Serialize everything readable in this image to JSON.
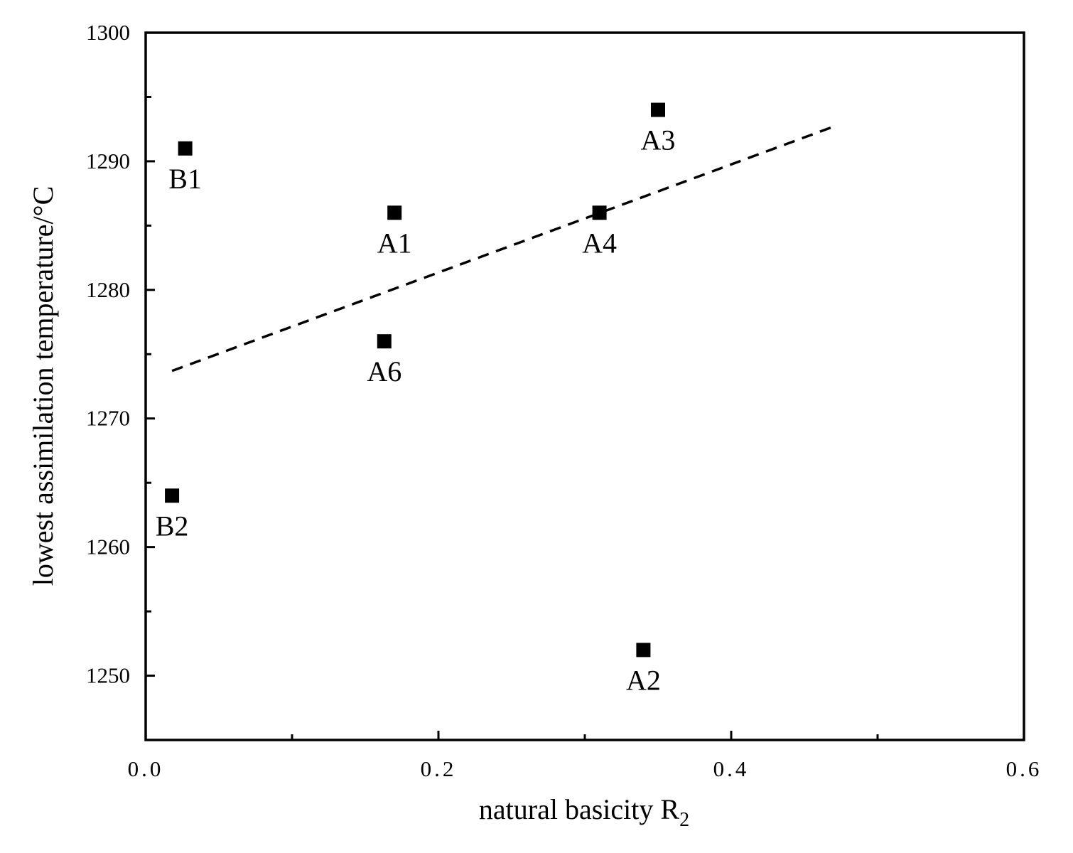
{
  "chart_data": {
    "type": "scatter",
    "title": "",
    "xlabel": "natural basicity R",
    "xlabel_subscript": "2",
    "ylabel": "lowest assimilation temperature/°C",
    "xlim": [
      0.0,
      0.6
    ],
    "ylim": [
      1245,
      1300
    ],
    "x_ticks": [
      0.0,
      0.2,
      0.4,
      0.6
    ],
    "x_tick_labels": [
      "0.0",
      "0.2",
      "0.4",
      "0.6"
    ],
    "x_minor_ticks": [
      0.1,
      0.3,
      0.5
    ],
    "y_ticks": [
      1250,
      1260,
      1270,
      1280,
      1290,
      1300
    ],
    "y_tick_labels": [
      "1250",
      "1260",
      "1270",
      "1280",
      "1290",
      "1300"
    ],
    "y_minor_ticks": [
      1255,
      1265,
      1275,
      1285,
      1295
    ],
    "grid": false,
    "marker": "square",
    "points": [
      {
        "label": "B1",
        "x": 0.027,
        "y": 1291
      },
      {
        "label": "B2",
        "x": 0.018,
        "y": 1264
      },
      {
        "label": "A1",
        "x": 0.17,
        "y": 1286
      },
      {
        "label": "A2",
        "x": 0.34,
        "y": 1252
      },
      {
        "label": "A3",
        "x": 0.35,
        "y": 1294
      },
      {
        "label": "A4",
        "x": 0.31,
        "y": 1286
      },
      {
        "label": "A6",
        "x": 0.163,
        "y": 1276
      }
    ],
    "trendline": {
      "style": "dashed",
      "x": [
        0.018,
        0.47
      ],
      "y": [
        1273.7,
        1292.7
      ]
    }
  }
}
